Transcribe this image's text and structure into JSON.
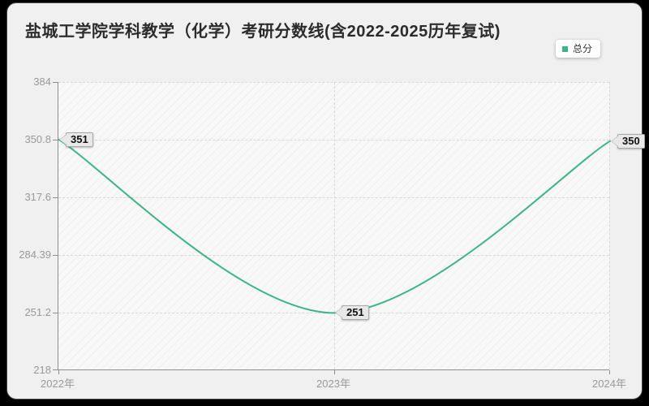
{
  "header": {
    "title": "盐城工学院学科教学（化学）考研分数线(含2022-2025历年复试)"
  },
  "legend": {
    "items": [
      {
        "label": "总分",
        "color": "#3cb487"
      }
    ]
  },
  "chart_data": {
    "type": "line",
    "title": "盐城工学院学科教学（化学）考研分数线(含2022-2025历年复试)",
    "categories": [
      "2022年",
      "2023年",
      "2024年"
    ],
    "series": [
      {
        "name": "总分",
        "values": [
          351,
          251,
          350
        ],
        "color": "#3cb487",
        "smooth": true
      }
    ],
    "point_labels": [
      "351",
      "251",
      "350"
    ],
    "ylim": [
      218,
      384
    ],
    "ytick_labels": [
      "384",
      "350.8",
      "317.6",
      "284.39",
      "251.2",
      "218"
    ],
    "xlabel": "",
    "ylabel": "",
    "grid": "horizontal dashed gridlines, vertical dashed at category ticks, hatched plot background",
    "legend_position": "top-right"
  }
}
